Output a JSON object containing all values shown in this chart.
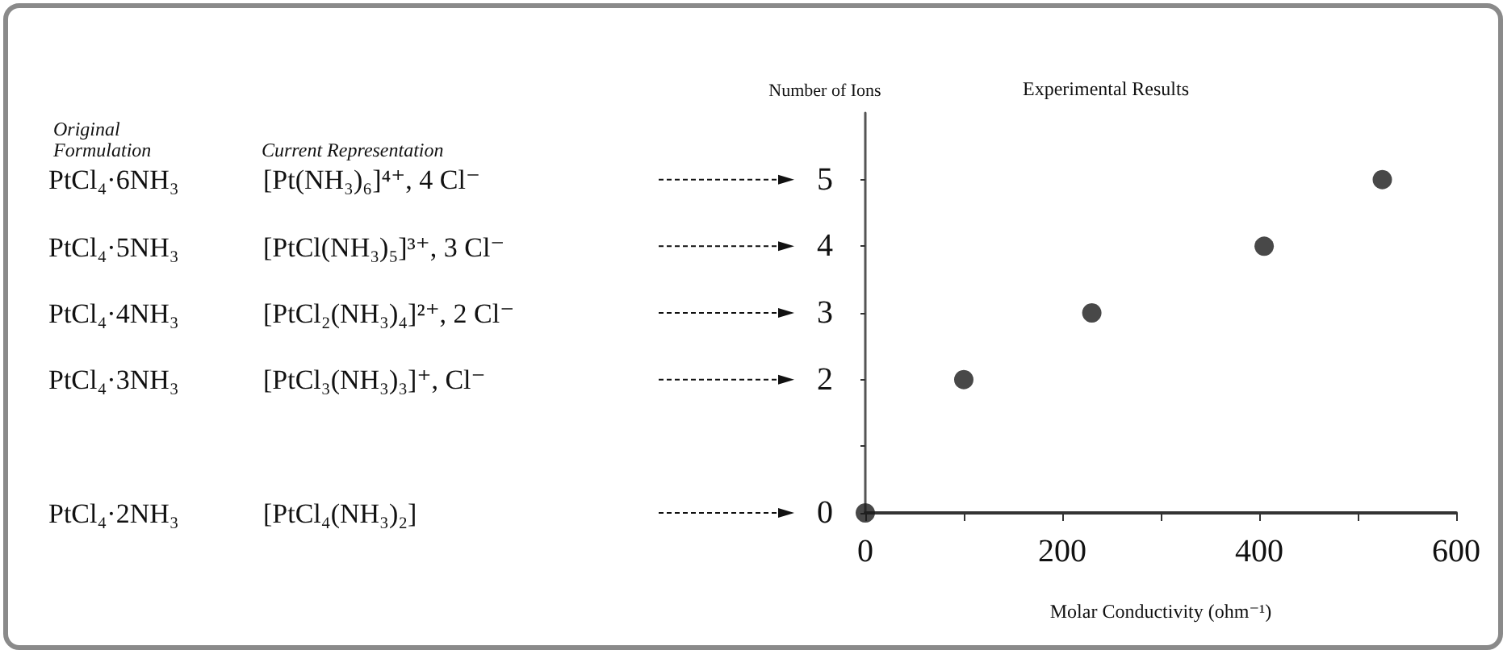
{
  "chart_data": {
    "type": "scatter",
    "title": "Experimental Results",
    "xlabel": "Molar Conductivity (ohm⁻¹)",
    "ylabel": "Number of Ions",
    "x": [
      0,
      100,
      230,
      405,
      525
    ],
    "values": [
      0,
      2,
      3,
      4,
      5
    ],
    "color": "#1a1a1a",
    "marker": "circle",
    "xlim": [
      0,
      600
    ],
    "xticks": [
      0,
      {
        "value": 100,
        "label": null
      },
      200,
      {
        "value": 300,
        "label": null
      },
      400,
      {
        "value": 500,
        "label": null
      },
      600
    ],
    "ylim": [
      0,
      6
    ],
    "yticks": [
      0,
      {
        "value": 1,
        "label": null
      },
      2,
      3,
      4,
      5
    ],
    "grid": false,
    "annotations": [
      "Original Formulation",
      "Current Representation",
      "PtCl₄·6NH₃",
      "[Pt(NH₃)₆]⁴⁺,  4 Cl⁻",
      "PtCl₄·5NH₃",
      "[PtCl(NH₃)₅]³⁺,  3 Cl⁻",
      "PtCl₄·4NH₃",
      "[PtCl₂(NH₃)₄]²⁺,  2 Cl⁻",
      "PtCl₄·3NH₃",
      "[PtCl₃(NH₃)₃]⁺,  Cl⁻",
      "PtCl₄·2NH₃",
      "[PtCl₄(NH₃)₂]"
    ]
  }
}
